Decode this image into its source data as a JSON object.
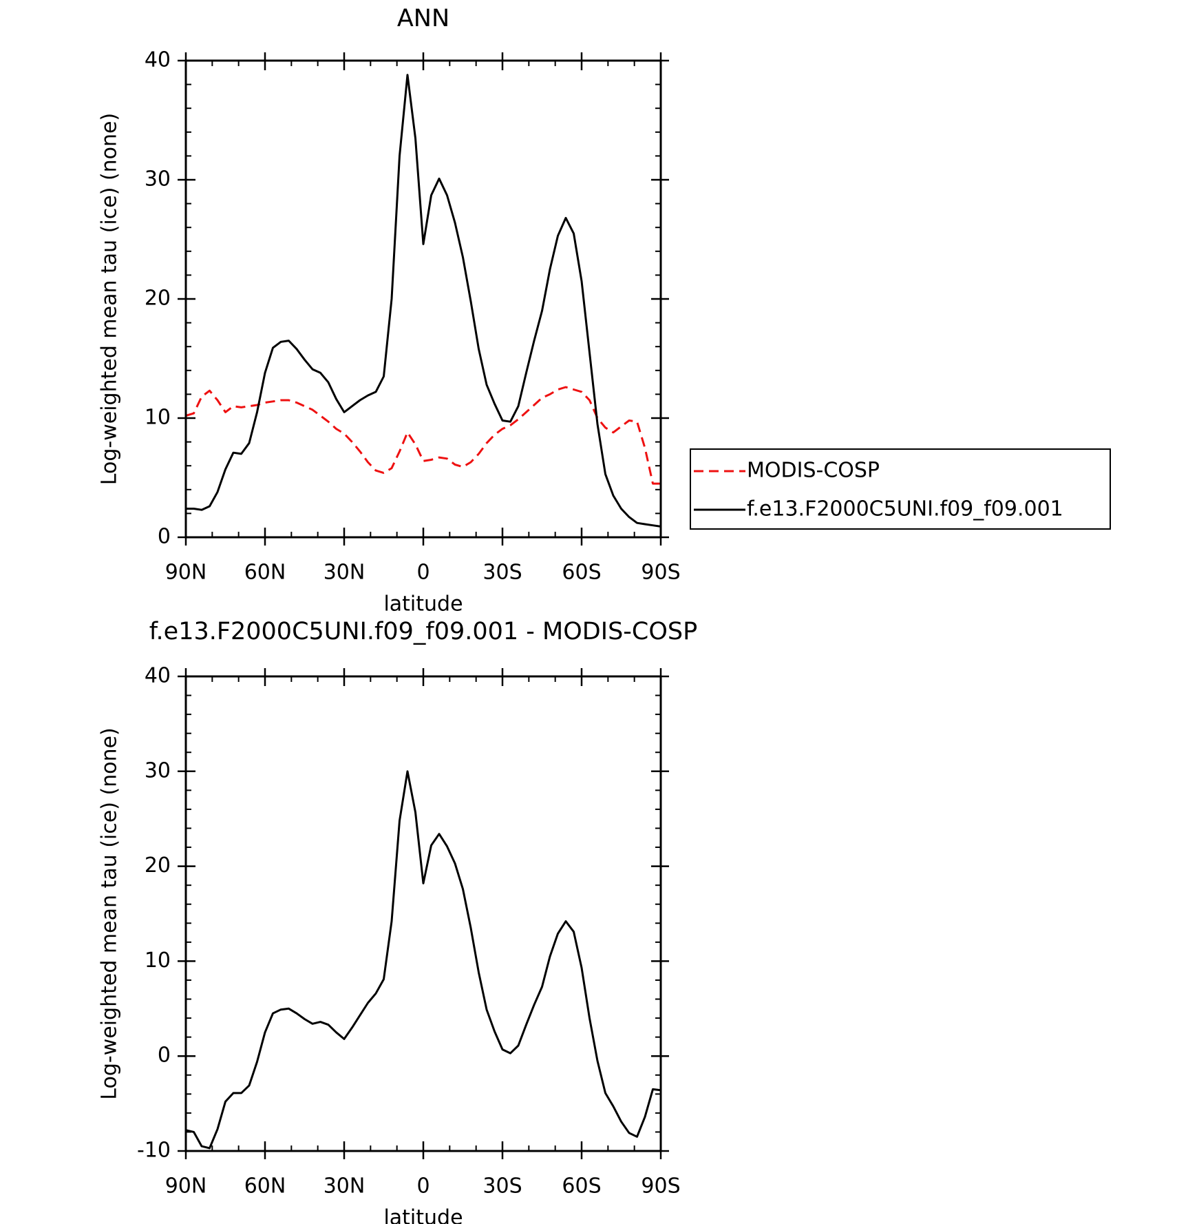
{
  "chart_data": [
    {
      "type": "line",
      "title": "ANN",
      "xlabel": "latitude",
      "ylabel": "Log-weighted mean tau (ice) (none)",
      "x": [
        90,
        87,
        84,
        81,
        78,
        75,
        72,
        69,
        66,
        63,
        60,
        57,
        54,
        51,
        48,
        45,
        42,
        39,
        36,
        33,
        30,
        27,
        24,
        21,
        18,
        15,
        12,
        9,
        6,
        3,
        0,
        -3,
        -6,
        -9,
        -12,
        -15,
        -18,
        -21,
        -24,
        -27,
        -30,
        -33,
        -36,
        -39,
        -42,
        -45,
        -48,
        -51,
        -54,
        -57,
        -60,
        -63,
        -66,
        -69,
        -72,
        -75,
        -78,
        -81,
        -84,
        -87,
        -90
      ],
      "series": [
        {
          "name": "MODIS-COSP",
          "color": "#ee1111",
          "dashed": true,
          "values": [
            10.2,
            10.4,
            11.8,
            12.3,
            11.5,
            10.5,
            11.0,
            10.9,
            11.0,
            11.1,
            11.3,
            11.4,
            11.5,
            11.5,
            11.3,
            11.0,
            10.7,
            10.2,
            9.7,
            9.1,
            8.7,
            8.0,
            7.2,
            6.3,
            5.6,
            5.4,
            5.8,
            7.2,
            8.8,
            7.8,
            6.4,
            6.5,
            6.7,
            6.6,
            6.1,
            5.9,
            6.3,
            7.0,
            7.9,
            8.6,
            9.1,
            9.4,
            9.9,
            10.5,
            11.1,
            11.7,
            12.0,
            12.4,
            12.6,
            12.4,
            12.2,
            11.5,
            10.0,
            9.2,
            8.8,
            9.3,
            9.8,
            9.7,
            7.5,
            4.5,
            4.5
          ]
        },
        {
          "name": "f.e13.F2000C5UNI.f09_f09.001",
          "color": "#000000",
          "dashed": false,
          "values": [
            2.4,
            2.4,
            2.3,
            2.6,
            3.8,
            5.7,
            7.1,
            7.0,
            7.9,
            10.5,
            13.8,
            15.9,
            16.4,
            16.5,
            15.8,
            14.9,
            14.1,
            13.8,
            13.0,
            11.6,
            10.5,
            11.0,
            11.5,
            11.9,
            12.2,
            13.5,
            20.0,
            32.0,
            38.8,
            33.5,
            24.6,
            28.7,
            30.1,
            28.7,
            26.4,
            23.5,
            19.8,
            15.8,
            12.8,
            11.2,
            9.8,
            9.7,
            11.0,
            13.8,
            16.5,
            19.0,
            22.5,
            25.3,
            26.8,
            25.5,
            21.5,
            15.5,
            9.5,
            5.3,
            3.5,
            2.4,
            1.7,
            1.2,
            1.1,
            1.0,
            0.9
          ]
        }
      ],
      "xlim": [
        90,
        -90
      ],
      "xticks": [
        {
          "value": 90,
          "label": "90N"
        },
        {
          "value": 60,
          "label": "60N"
        },
        {
          "value": 30,
          "label": "30N"
        },
        0,
        {
          "value": -30,
          "label": "30S"
        },
        {
          "value": -60,
          "label": "60S"
        },
        {
          "value": -90,
          "label": "90S"
        }
      ],
      "ylim": [
        0,
        40
      ],
      "yticks": [
        0,
        10,
        20,
        30,
        40
      ],
      "legend": "right"
    },
    {
      "type": "line",
      "title": "f.e13.F2000C5UNI.f09_f09.001 - MODIS-COSP",
      "xlabel": "latitude",
      "ylabel": "Log-weighted mean tau (ice) (none)",
      "x": [
        90,
        87,
        84,
        81,
        78,
        75,
        72,
        69,
        66,
        63,
        60,
        57,
        54,
        51,
        48,
        45,
        42,
        39,
        36,
        33,
        30,
        27,
        24,
        21,
        18,
        15,
        12,
        9,
        6,
        3,
        0,
        -3,
        -6,
        -9,
        -12,
        -15,
        -18,
        -21,
        -24,
        -27,
        -30,
        -33,
        -36,
        -39,
        -42,
        -45,
        -48,
        -51,
        -54,
        -57,
        -60,
        -63,
        -66,
        -69,
        -72,
        -75,
        -78,
        -81,
        -84,
        -87,
        -90
      ],
      "series": [
        {
          "color": "#000000",
          "dashed": false,
          "values": [
            -7.8,
            -8.0,
            -9.5,
            -9.7,
            -7.7,
            -4.8,
            -3.9,
            -3.9,
            -3.1,
            -0.6,
            2.5,
            4.5,
            4.9,
            5.0,
            4.5,
            3.9,
            3.4,
            3.6,
            3.3,
            2.5,
            1.8,
            3.0,
            4.3,
            5.6,
            6.6,
            8.1,
            14.2,
            24.8,
            30.0,
            25.7,
            18.2,
            22.2,
            23.4,
            22.1,
            20.3,
            17.6,
            13.5,
            8.8,
            4.9,
            2.6,
            0.7,
            0.3,
            1.1,
            3.3,
            5.4,
            7.3,
            10.5,
            12.9,
            14.2,
            13.1,
            9.3,
            4.0,
            -0.5,
            -3.9,
            -5.3,
            -6.9,
            -8.1,
            -8.5,
            -6.4,
            -3.5,
            -3.6
          ]
        }
      ],
      "xlim": [
        90,
        -90
      ],
      "xticks": [
        {
          "value": 90,
          "label": "90N"
        },
        {
          "value": 60,
          "label": "60N"
        },
        {
          "value": 30,
          "label": "30N"
        },
        0,
        {
          "value": -30,
          "label": "30S"
        },
        {
          "value": -60,
          "label": "60S"
        },
        {
          "value": -90,
          "label": "90S"
        }
      ],
      "ylim": [
        -10,
        40
      ],
      "yticks": [
        -10,
        0,
        10,
        20,
        30,
        40
      ]
    }
  ]
}
